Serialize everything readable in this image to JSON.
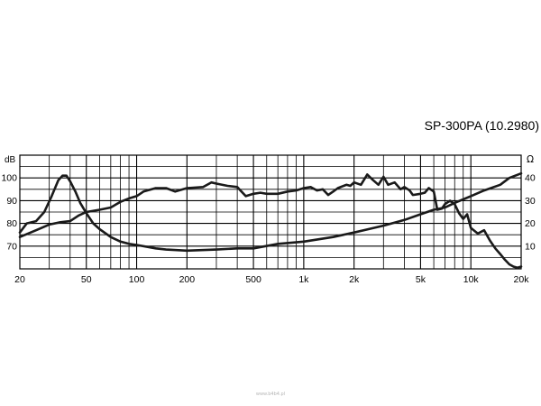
{
  "title": "SP-300PA (10.2980)",
  "watermark": "www.b4b4.pl",
  "chart_data": {
    "type": "line",
    "title": "SP-300PA (10.2980)",
    "x_scale": "log",
    "xlim": [
      20,
      20000
    ],
    "x_ticks": [
      {
        "value": 20,
        "label": "20"
      },
      {
        "value": 50,
        "label": "50"
      },
      {
        "value": 100,
        "label": "100"
      },
      {
        "value": 200,
        "label": "200"
      },
      {
        "value": 500,
        "label": "500"
      },
      {
        "value": 1000,
        "label": "1k"
      },
      {
        "value": 2000,
        "label": "2k"
      },
      {
        "value": 5000,
        "label": "5k"
      },
      {
        "value": 10000,
        "label": "10k"
      },
      {
        "value": 20000,
        "label": "20k"
      }
    ],
    "y_left": {
      "unit": "dB",
      "range": [
        60,
        110
      ],
      "ticks": [
        70,
        80,
        90,
        100
      ]
    },
    "y_right": {
      "unit": "Ω",
      "range": [
        0,
        50
      ],
      "ticks": [
        10,
        20,
        30,
        40
      ]
    },
    "grid": true,
    "series": [
      {
        "axis": "left",
        "color": "#1a1a1a",
        "points": [
          [
            20,
            74
          ],
          [
            25,
            77
          ],
          [
            30,
            79.5
          ],
          [
            35,
            80.5
          ],
          [
            40,
            81
          ],
          [
            45,
            83.5
          ],
          [
            50,
            85
          ],
          [
            60,
            86
          ],
          [
            70,
            87
          ],
          [
            80,
            89.5
          ],
          [
            90,
            91
          ],
          [
            100,
            92
          ],
          [
            110,
            94
          ],
          [
            130,
            95.5
          ],
          [
            150,
            95.5
          ],
          [
            170,
            94
          ],
          [
            200,
            95.5
          ],
          [
            250,
            96
          ],
          [
            280,
            98
          ],
          [
            300,
            97.5
          ],
          [
            350,
            96.5
          ],
          [
            400,
            96
          ],
          [
            450,
            92
          ],
          [
            500,
            93
          ],
          [
            550,
            93.5
          ],
          [
            600,
            93
          ],
          [
            700,
            93
          ],
          [
            800,
            94
          ],
          [
            900,
            94.5
          ],
          [
            1000,
            95.5
          ],
          [
            1100,
            96
          ],
          [
            1200,
            94.5
          ],
          [
            1300,
            95
          ],
          [
            1400,
            92.5
          ],
          [
            1500,
            94
          ],
          [
            1600,
            95.5
          ],
          [
            1800,
            97
          ],
          [
            1900,
            96.5
          ],
          [
            2000,
            98
          ],
          [
            2200,
            97
          ],
          [
            2400,
            101.5
          ],
          [
            2600,
            99
          ],
          [
            2800,
            97
          ],
          [
            3000,
            100.5
          ],
          [
            3200,
            97
          ],
          [
            3500,
            98
          ],
          [
            3800,
            95
          ],
          [
            4000,
            96
          ],
          [
            4300,
            94.5
          ],
          [
            4500,
            92.5
          ],
          [
            5000,
            93
          ],
          [
            5300,
            93.5
          ],
          [
            5600,
            95.5
          ],
          [
            6000,
            94
          ],
          [
            6300,
            86
          ],
          [
            6700,
            86.5
          ],
          [
            7000,
            88.5
          ],
          [
            7500,
            90
          ],
          [
            8000,
            88.5
          ],
          [
            8500,
            84.5
          ],
          [
            9000,
            82
          ],
          [
            9500,
            84
          ],
          [
            10000,
            78
          ],
          [
            11000,
            75.5
          ],
          [
            12000,
            77
          ],
          [
            13000,
            72.5
          ],
          [
            14000,
            69
          ],
          [
            15000,
            66.5
          ],
          [
            16000,
            64
          ],
          [
            17000,
            62
          ],
          [
            18000,
            61
          ],
          [
            19000,
            60.5
          ],
          [
            20000,
            61
          ]
        ]
      },
      {
        "axis": "right",
        "color": "#1a1a1a",
        "points": [
          [
            20,
            16
          ],
          [
            22,
            20
          ],
          [
            25,
            21
          ],
          [
            28,
            25
          ],
          [
            31,
            32
          ],
          [
            34,
            39
          ],
          [
            36,
            41
          ],
          [
            38,
            41
          ],
          [
            40,
            38.5
          ],
          [
            43,
            34
          ],
          [
            46,
            29
          ],
          [
            50,
            24.5
          ],
          [
            55,
            20
          ],
          [
            60,
            17.5
          ],
          [
            70,
            14
          ],
          [
            80,
            12
          ],
          [
            90,
            11
          ],
          [
            100,
            10.5
          ],
          [
            130,
            9
          ],
          [
            150,
            8.5
          ],
          [
            200,
            8
          ],
          [
            300,
            8.5
          ],
          [
            400,
            9
          ],
          [
            500,
            9
          ],
          [
            700,
            11
          ],
          [
            1000,
            12
          ],
          [
            1500,
            14
          ],
          [
            2000,
            16
          ],
          [
            3000,
            19
          ],
          [
            4000,
            21.5
          ],
          [
            5000,
            24
          ],
          [
            6000,
            26
          ],
          [
            7000,
            27
          ],
          [
            8000,
            29
          ],
          [
            10000,
            32
          ],
          [
            12000,
            34.5
          ],
          [
            15000,
            37
          ],
          [
            17000,
            40
          ],
          [
            20000,
            42
          ]
        ]
      }
    ]
  }
}
